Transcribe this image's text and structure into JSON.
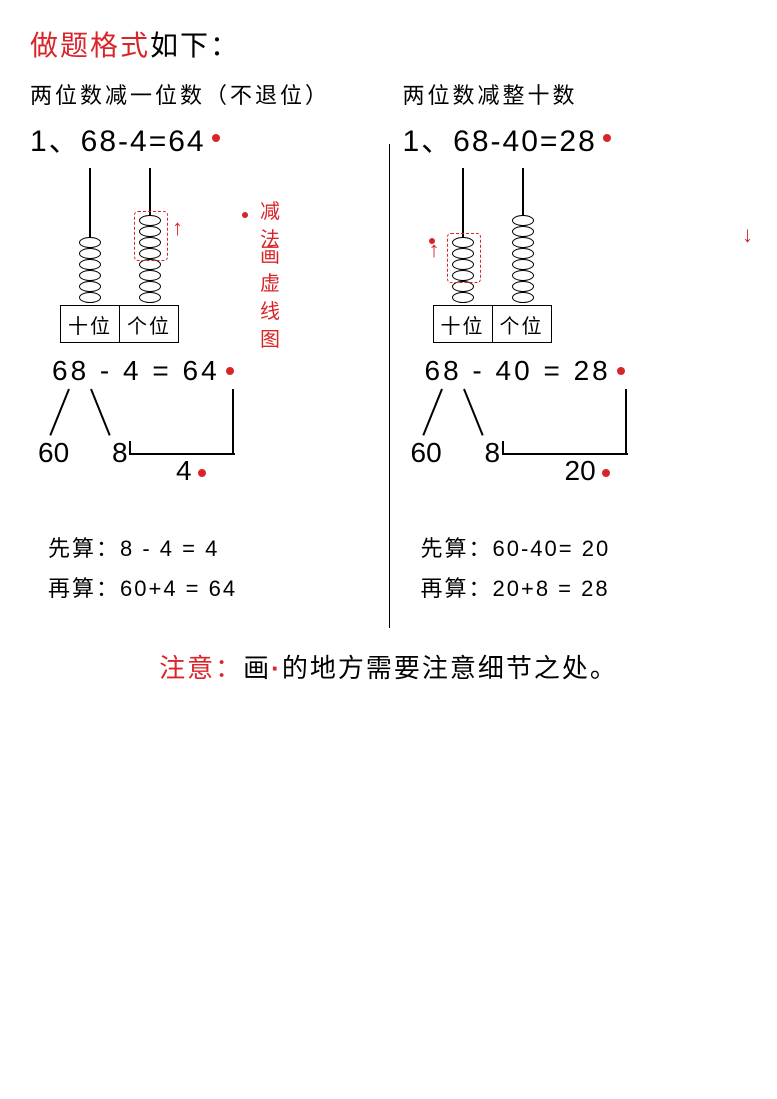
{
  "colors": {
    "accent": "#d9252a",
    "ink": "#000000",
    "bg": "#ffffff"
  },
  "title": {
    "hl": "做题格式",
    "rest": "如下："
  },
  "left": {
    "subtitle": "两位数减一位数（不退位）",
    "equation": "1、68-4=64",
    "abacus": {
      "labels": {
        "tens": "十位",
        "ones": "个位"
      },
      "tens_beads": 6,
      "ones_beads": 8,
      "dashed_on": "ones",
      "dashed_count": 4,
      "arrow_side": "right",
      "annotations": [
        "减法",
        "画虚线图"
      ]
    },
    "split": {
      "expr": "68 - 4 = 64",
      "left_part": "60",
      "right_part": "8",
      "drop_val": "4"
    },
    "steps": {
      "first": "先算：8 - 4 = 4",
      "then": "再算：60+4 = 64"
    }
  },
  "right": {
    "subtitle": "两位数减整十数",
    "equation": "1、68-40=28",
    "abacus": {
      "labels": {
        "tens": "十位",
        "ones": "个位"
      },
      "tens_beads": 6,
      "ones_beads": 8,
      "dashed_on": "tens",
      "dashed_count": 4,
      "arrow_side": "left",
      "annotations": []
    },
    "right_margin_arrow": "↓",
    "split": {
      "expr": "68 - 40 = 28",
      "left_part": "60",
      "right_part": "8",
      "drop_val": "20"
    },
    "steps": {
      "first": "先算：60-40= 20",
      "then": "再算：20+8 = 28"
    }
  },
  "note": {
    "hl": "注意：",
    "rest_a": "画",
    "dot": "·",
    "rest_b": "的地方需要注意细节之处。"
  }
}
